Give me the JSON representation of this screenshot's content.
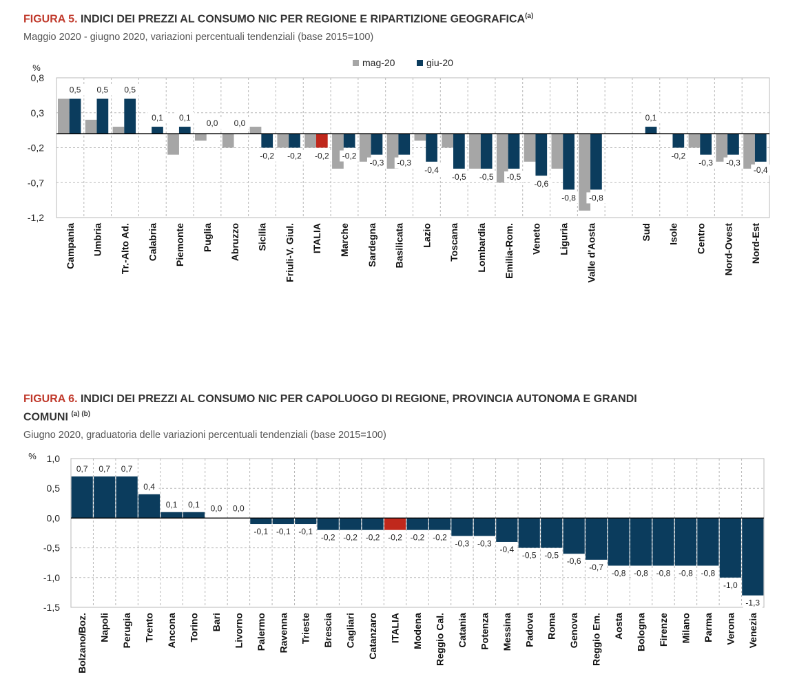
{
  "fig5": {
    "label": "FIGURA 5.",
    "title": " INDICI DEI PREZZI AL CONSUMO NIC PER REGIONE E RIPARTIZIONE GEOGRAFICA",
    "note": "(a)",
    "subtitle": "Maggio 2020 - giugno 2020, variazioni percentuali tendenziali (base 2015=100)"
  },
  "fig6": {
    "label": "FIGURA 6.",
    "title_line1": " INDICI DEI PREZZI AL CONSUMO NIC PER CAPOLUOGO DI REGIONE, PROVINCIA AUTONOMA E GRANDI",
    "title_line2": "COMUNI ",
    "note": "(a) (b)",
    "subtitle": "Giugno 2020, graduatoria delle variazioni percentuali tendenziali (base 2015=100)"
  },
  "colors": {
    "mag": "#a6a6a6",
    "giu": "#0b3c5d",
    "italia": "#c0281c",
    "grid": "#b8b8b8"
  },
  "chart_data": [
    {
      "type": "bar",
      "unit": "%",
      "ylim": [
        -1.2,
        0.8
      ],
      "yticks": [
        "0,8",
        "0,3",
        "-0,2",
        "-0,7",
        "-1,2"
      ],
      "ytick_values": [
        0.8,
        0.3,
        -0.2,
        -0.7,
        -1.2
      ],
      "legend": {
        "position": "top-center",
        "entries": [
          "mag-20",
          "giu-20"
        ]
      },
      "categories": [
        "Campania",
        "Umbria",
        "Tr.-Alto Ad.",
        "Calabria",
        "Piemonte",
        "Puglia",
        "Abruzzo",
        "Sicilia",
        "Friuli-V. Giul.",
        "ITALIA",
        "Marche",
        "Sardegna",
        "Basilicata",
        "Lazio",
        "Toscana",
        "Lombardia",
        "Emilia-Rom.",
        "Veneto",
        "Liguria",
        "Valle d'Aosta",
        "",
        "Sud",
        "Isole",
        "Centro",
        "Nord-Ovest",
        "Nord-Est"
      ],
      "series": [
        {
          "name": "mag-20",
          "values": [
            0.5,
            0.2,
            0.1,
            0.0,
            -0.3,
            -0.1,
            -0.2,
            0.1,
            -0.2,
            -0.2,
            -0.5,
            -0.4,
            -0.5,
            -0.1,
            -0.2,
            -0.5,
            -0.7,
            -0.4,
            -0.5,
            -1.1,
            null,
            0.0,
            0.0,
            -0.2,
            -0.4,
            -0.5
          ]
        },
        {
          "name": "giu-20",
          "values": [
            0.5,
            0.5,
            0.5,
            0.1,
            0.1,
            0.0,
            0.0,
            -0.2,
            -0.2,
            -0.2,
            -0.2,
            -0.3,
            -0.3,
            -0.4,
            -0.5,
            -0.5,
            -0.5,
            -0.6,
            -0.8,
            -0.8,
            null,
            0.1,
            -0.2,
            -0.3,
            -0.3,
            -0.4
          ]
        }
      ],
      "data_labels": [
        "0,5",
        "0,5",
        "0,5",
        "0,1",
        "0,1",
        "0,0",
        "0,0",
        "-0,2",
        "-0,2",
        "-0,2",
        "-0,2",
        "-0,3",
        "-0,3",
        "-0,4",
        "-0,5",
        "-0,5",
        "-0,5",
        "-0,6",
        "-0,8",
        "-0,8",
        "",
        "0,1",
        "-0,2",
        "-0,3",
        "-0,3",
        "-0,4"
      ],
      "highlight": "ITALIA",
      "grid": true
    },
    {
      "type": "bar",
      "unit": "%",
      "ylim": [
        -1.5,
        1.0
      ],
      "yticks": [
        "1,0",
        "0,5",
        "0,0",
        "-0,5",
        "-1,0",
        "-1,5"
      ],
      "ytick_values": [
        1.0,
        0.5,
        0.0,
        -0.5,
        -1.0,
        -1.5
      ],
      "categories": [
        "Bolzano/Boz.",
        "Napoli",
        "Perugia",
        "Trento",
        "Ancona",
        "Torino",
        "Bari",
        "Livorno",
        "Palermo",
        "Ravenna",
        "Trieste",
        "Brescia",
        "Cagliari",
        "Catanzaro",
        "ITALIA",
        "Modena",
        "Reggio Cal.",
        "Catania",
        "Potenza",
        "Messina",
        "Padova",
        "Roma",
        "Genova",
        "Reggio Em.",
        "Aosta",
        "Bologna",
        "Firenze",
        "Milano",
        "Parma",
        "Verona",
        "Venezia"
      ],
      "values": [
        0.7,
        0.7,
        0.7,
        0.4,
        0.1,
        0.1,
        0.0,
        0.0,
        -0.1,
        -0.1,
        -0.1,
        -0.2,
        -0.2,
        -0.2,
        -0.2,
        -0.2,
        -0.2,
        -0.3,
        -0.3,
        -0.4,
        -0.5,
        -0.5,
        -0.6,
        -0.7,
        -0.8,
        -0.8,
        -0.8,
        -0.8,
        -0.8,
        -1.0,
        -1.3
      ],
      "data_labels": [
        "0,7",
        "0,7",
        "0,7",
        "0,4",
        "0,1",
        "0,1",
        "0,0",
        "0,0",
        "-0,1",
        "-0,1",
        "-0,1",
        "-0,2",
        "-0,2",
        "-0,2",
        "-0,2",
        "-0,2",
        "-0,2",
        "-0,3",
        "-0,3",
        "-0,4",
        "-0,5",
        "-0,5",
        "-0,6",
        "-0,7",
        "-0,8",
        "-0,8",
        "-0,8",
        "-0,8",
        "-0,8",
        "-1,0",
        "-1,3"
      ],
      "highlight": "ITALIA",
      "grid": true
    }
  ]
}
